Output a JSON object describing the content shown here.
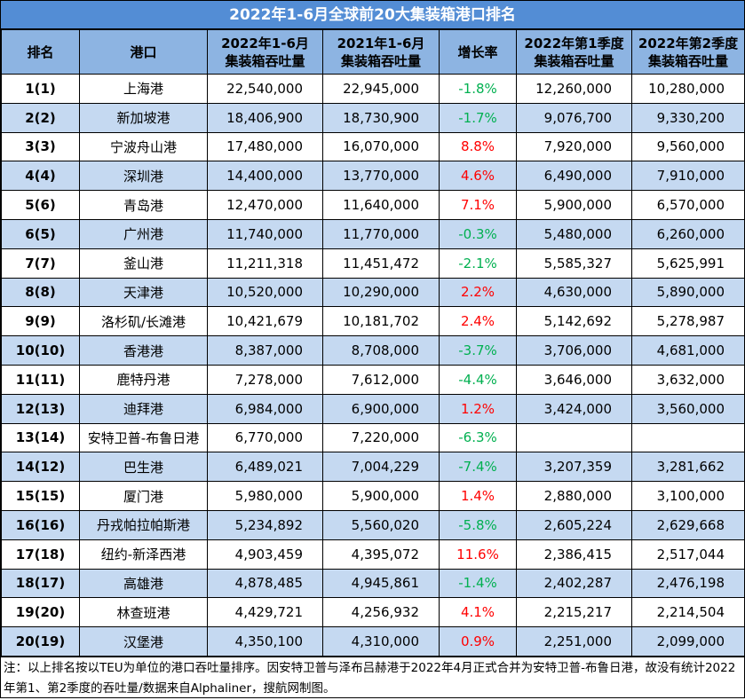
{
  "title": "2022年1-6月全球前20大集装箱港口排名",
  "headers": [
    "排名",
    "港口",
    "2022年1-6月\n集装箱吞吐量",
    "2021年1-6月\n集装箱吞吐量",
    "增长率",
    "2022年第1季度\n集装箱吞吐量",
    "2022年第2季度\n集装箱吞吐量"
  ],
  "colors": {
    "title_bg": "#538DD5",
    "header_bg": "#8DB4E2",
    "alt_row_bg": "#C5D9F1",
    "growth_positive": "#FF0000",
    "growth_negative": "#00B050"
  },
  "rows": [
    [
      "1(1)",
      "上海港",
      "22,540,000",
      "22,945,000",
      "-1.8%",
      "12,260,000",
      "10,280,000"
    ],
    [
      "2(2)",
      "新加坡港",
      "18,406,900",
      "18,730,900",
      "-1.7%",
      "9,076,700",
      "9,330,200"
    ],
    [
      "3(3)",
      "宁波舟山港",
      "17,480,000",
      "16,070,000",
      "8.8%",
      "7,920,000",
      "9,560,000"
    ],
    [
      "4(4)",
      "深圳港",
      "14,400,000",
      "13,770,000",
      "4.6%",
      "6,490,000",
      "7,910,000"
    ],
    [
      "5(6)",
      "青岛港",
      "12,470,000",
      "11,640,000",
      "7.1%",
      "5,900,000",
      "6,570,000"
    ],
    [
      "6(5)",
      "广州港",
      "11,740,000",
      "11,770,000",
      "-0.3%",
      "5,480,000",
      "6,260,000"
    ],
    [
      "7(7)",
      "釜山港",
      "11,211,318",
      "11,451,472",
      "-2.1%",
      "5,585,327",
      "5,625,991"
    ],
    [
      "8(8)",
      "天津港",
      "10,520,000",
      "10,290,000",
      "2.2%",
      "4,630,000",
      "5,890,000"
    ],
    [
      "9(9)",
      "洛杉矶/长滩港",
      "10,421,679",
      "10,181,702",
      "2.4%",
      "5,142,692",
      "5,278,987"
    ],
    [
      "10(10)",
      "香港港",
      "8,387,000",
      "8,708,000",
      "-3.7%",
      "3,706,000",
      "4,681,000"
    ],
    [
      "11(11)",
      "鹿特丹港",
      "7,278,000",
      "7,612,000",
      "-4.4%",
      "3,646,000",
      "3,632,000"
    ],
    [
      "12(13)",
      "迪拜港",
      "6,984,000",
      "6,900,000",
      "1.2%",
      "3,424,000",
      "3,560,000"
    ],
    [
      "13(14)",
      "安特卫普-布鲁日港",
      "6,770,000",
      "7,220,000",
      "-6.3%",
      "",
      ""
    ],
    [
      "14(12)",
      "巴生港",
      "6,489,021",
      "7,004,229",
      "-7.4%",
      "3,207,359",
      "3,281,662"
    ],
    [
      "15(15)",
      "厦门港",
      "5,980,000",
      "5,900,000",
      "1.4%",
      "2,880,000",
      "3,100,000"
    ],
    [
      "16(16)",
      "丹戎帕拉帕斯港",
      "5,234,892",
      "5,560,020",
      "-5.8%",
      "2,605,224",
      "2,629,668"
    ],
    [
      "17(18)",
      "纽约-新泽西港",
      "4,903,459",
      "4,395,072",
      "11.6%",
      "2,386,415",
      "2,517,044"
    ],
    [
      "18(17)",
      "高雄港",
      "4,878,485",
      "4,945,861",
      "-1.4%",
      "2,402,287",
      "2,476,198"
    ],
    [
      "19(20)",
      "林查班港",
      "4,429,721",
      "4,256,932",
      "4.1%",
      "2,215,217",
      "2,214,504"
    ],
    [
      "20(19)",
      "汉堡港",
      "4,350,100",
      "4,310,000",
      "0.9%",
      "2,251,000",
      "2,099,000"
    ]
  ],
  "note": "注：以上排名按以TEU为单位的港口吞吐量排序。因安特卫普与泽布吕赫港于2022年4月正式合并为安特卫普-布鲁日港，故没有统计2022年第1、第2季度的吞吐量/数据来自Alphaliner，搜航网制图。"
}
